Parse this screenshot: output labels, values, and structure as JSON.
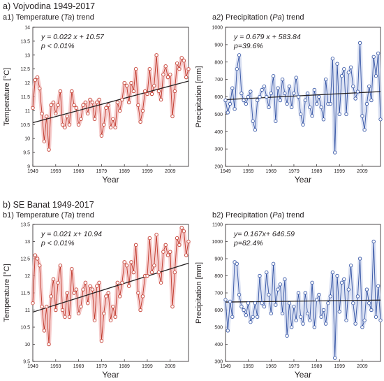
{
  "sections": [
    {
      "title": "a) Vojvodina 1949-2017"
    },
    {
      "title": "b) SE Banat 1949-2017"
    }
  ],
  "panel_titles": [
    {
      "prefix": "a1) Temperature (",
      "sym": "Ta",
      "suffix": ") trend"
    },
    {
      "prefix": "a2) Precipitation (",
      "sym": "Pa",
      "suffix": ") trend"
    },
    {
      "prefix": "b1) Temperature (",
      "sym": "Ta",
      "suffix": ") trend"
    },
    {
      "prefix": "b2) Precipitation (",
      "sym": "Pa",
      "suffix": ") trend"
    }
  ],
  "chart_data": [
    {
      "type": "line",
      "title": "a1) Temperature (Ta) trend",
      "xlabel": "Year",
      "ylabel": "Temperature [°C]",
      "equation": "y = 0.022 x + 10.57",
      "pvalue": "p < 0.01%",
      "color": "#c0392b",
      "halo": "#f2b8b8",
      "xlim": [
        1949,
        2017
      ],
      "ylim": [
        9,
        14
      ],
      "xticks": [
        1949,
        1959,
        1969,
        1979,
        1989,
        1999,
        2009
      ],
      "yticks": [
        9,
        9.5,
        10,
        10.5,
        11,
        11.5,
        12,
        12.5,
        13,
        13.5,
        14
      ],
      "trend": {
        "slope": 0.022,
        "intercept": 10.57
      },
      "x": [
        1949,
        1950,
        1951,
        1952,
        1953,
        1954,
        1955,
        1956,
        1957,
        1958,
        1959,
        1960,
        1961,
        1962,
        1963,
        1964,
        1965,
        1966,
        1967,
        1968,
        1969,
        1970,
        1971,
        1972,
        1973,
        1974,
        1975,
        1976,
        1977,
        1978,
        1979,
        1980,
        1981,
        1982,
        1983,
        1984,
        1985,
        1986,
        1987,
        1988,
        1989,
        1990,
        1991,
        1992,
        1993,
        1994,
        1995,
        1996,
        1997,
        1998,
        1999,
        2000,
        2001,
        2002,
        2003,
        2004,
        2005,
        2006,
        2007,
        2008,
        2009,
        2010,
        2011,
        2012,
        2013,
        2014,
        2015,
        2016,
        2017
      ],
      "values": [
        11.1,
        12.1,
        12.2,
        11.8,
        10.9,
        9.9,
        10.8,
        9.6,
        11.2,
        11.3,
        10.9,
        11.2,
        11.7,
        10.5,
        10.4,
        10.8,
        10.5,
        11.7,
        11.2,
        11.1,
        10.5,
        10.7,
        11.2,
        11.3,
        10.9,
        11.4,
        11.3,
        10.7,
        11.3,
        11.4,
        10.1,
        10.5,
        11.1,
        11.2,
        10.4,
        10.7,
        10.4,
        11.3,
        11.0,
        11.4,
        12.0,
        11.9,
        11.3,
        12.0,
        11.7,
        12.5,
        11.2,
        10.6,
        11.0,
        11.7,
        11.6,
        12.5,
        11.6,
        11.9,
        13.0,
        11.7,
        11.4,
        12.3,
        12.6,
        12.2,
        12.3,
        10.8,
        11.7,
        12.7,
        12.5,
        12.9,
        12.8,
        12.2,
        12.5
      ]
    },
    {
      "type": "line",
      "title": "a2) Precipitation (Pa) trend",
      "xlabel": "Year",
      "ylabel": "Precipitation [mm]",
      "equation": "y = 0.679 x + 583.84",
      "pvalue": "p=39.6%",
      "color": "#3454a4",
      "halo": "#cdd6ee",
      "xlim": [
        1949,
        2017
      ],
      "ylim": [
        200,
        1000
      ],
      "xticks": [
        1949,
        1959,
        1969,
        1979,
        1989,
        1999,
        2009
      ],
      "yticks": [
        200,
        300,
        400,
        500,
        600,
        700,
        800,
        900,
        1000
      ],
      "trend": {
        "slope": 0.679,
        "intercept": 583.84
      },
      "x": [
        1949,
        1950,
        1951,
        1952,
        1953,
        1954,
        1955,
        1956,
        1957,
        1958,
        1959,
        1960,
        1961,
        1962,
        1963,
        1964,
        1965,
        1966,
        1967,
        1968,
        1969,
        1970,
        1971,
        1972,
        1973,
        1974,
        1975,
        1976,
        1977,
        1978,
        1979,
        1980,
        1981,
        1982,
        1983,
        1984,
        1985,
        1986,
        1987,
        1988,
        1989,
        1990,
        1991,
        1992,
        1993,
        1994,
        1995,
        1996,
        1997,
        1998,
        1999,
        2000,
        2001,
        2002,
        2003,
        2004,
        2005,
        2006,
        2007,
        2008,
        2009,
        2010,
        2011,
        2012,
        2013,
        2014,
        2015,
        2016,
        2017
      ],
      "values": [
        580,
        510,
        560,
        650,
        530,
        760,
        840,
        620,
        580,
        560,
        600,
        630,
        460,
        410,
        580,
        600,
        640,
        660,
        600,
        540,
        620,
        720,
        460,
        650,
        580,
        700,
        620,
        560,
        660,
        540,
        620,
        710,
        600,
        500,
        440,
        580,
        620,
        540,
        490,
        640,
        560,
        600,
        540,
        470,
        700,
        560,
        560,
        820,
        280,
        790,
        500,
        720,
        760,
        500,
        740,
        770,
        660,
        590,
        630,
        910,
        490,
        410,
        560,
        660,
        580,
        830,
        720,
        850,
        470
      ]
    },
    {
      "type": "line",
      "title": "b1) Temperature (Ta) trend",
      "xlabel": "Year",
      "ylabel": "Temperature [°C]",
      "equation": "y = 0.021 x+ 10.94",
      "pvalue": "p < 0.01%",
      "color": "#c0392b",
      "halo": "#f2b8b8",
      "xlim": [
        1949,
        2017
      ],
      "ylim": [
        9.5,
        13.5
      ],
      "xticks": [
        1949,
        1959,
        1969,
        1979,
        1989,
        1999,
        2009
      ],
      "yticks": [
        9.5,
        10,
        10.5,
        11,
        11.5,
        12,
        12.5,
        13,
        13.5
      ],
      "trend": {
        "slope": 0.021,
        "intercept": 10.94
      },
      "x": [
        1949,
        1950,
        1951,
        1952,
        1953,
        1954,
        1955,
        1956,
        1957,
        1958,
        1959,
        1960,
        1961,
        1962,
        1963,
        1964,
        1965,
        1966,
        1967,
        1968,
        1969,
        1970,
        1971,
        1972,
        1973,
        1974,
        1975,
        1976,
        1977,
        1978,
        1979,
        1980,
        1981,
        1982,
        1983,
        1984,
        1985,
        1986,
        1987,
        1988,
        1989,
        1990,
        1991,
        1992,
        1993,
        1994,
        1995,
        1996,
        1997,
        1998,
        1999,
        2000,
        2001,
        2002,
        2003,
        2004,
        2005,
        2006,
        2007,
        2008,
        2009,
        2010,
        2011,
        2012,
        2013,
        2014,
        2015,
        2016,
        2017
      ],
      "values": [
        11.2,
        12.6,
        12.5,
        12.3,
        11.1,
        10.4,
        11.1,
        10.0,
        11.4,
        11.9,
        11.0,
        11.8,
        12.3,
        11.0,
        10.8,
        11.5,
        10.8,
        12.2,
        11.5,
        11.6,
        10.9,
        11.1,
        11.6,
        11.8,
        11.2,
        11.7,
        11.6,
        10.7,
        11.7,
        11.8,
        10.1,
        10.9,
        11.4,
        11.5,
        10.7,
        11.1,
        10.8,
        11.8,
        11.4,
        11.8,
        12.4,
        12.3,
        11.7,
        12.4,
        12.1,
        12.9,
        11.5,
        11.0,
        11.4,
        12.0,
        12.0,
        13.1,
        12.1,
        12.3,
        13.2,
        12.1,
        11.8,
        12.7,
        12.9,
        12.6,
        12.7,
        11.1,
        12.1,
        13.1,
        12.9,
        13.4,
        13.3,
        12.6,
        13.0
      ]
    },
    {
      "type": "line",
      "title": "b2) Precipitation (Pa) trend",
      "xlabel": "Year",
      "ylabel": "Precipitation [mm]",
      "equation": "y= 0.167x+ 646.59",
      "pvalue": "p=82.4%",
      "color": "#3454a4",
      "halo": "#cdd6ee",
      "xlim": [
        1949,
        2017
      ],
      "ylim": [
        300,
        1100
      ],
      "xticks": [
        1949,
        1959,
        1969,
        1979,
        1989,
        1999,
        2009
      ],
      "yticks": [
        300,
        400,
        500,
        600,
        700,
        800,
        900,
        1000,
        1100
      ],
      "trend": {
        "slope": 0.167,
        "intercept": 646.59
      },
      "x": [
        1949,
        1950,
        1951,
        1952,
        1953,
        1954,
        1955,
        1956,
        1957,
        1958,
        1959,
        1960,
        1961,
        1962,
        1963,
        1964,
        1965,
        1966,
        1967,
        1968,
        1969,
        1970,
        1971,
        1972,
        1973,
        1974,
        1975,
        1976,
        1977,
        1978,
        1979,
        1980,
        1981,
        1982,
        1983,
        1984,
        1985,
        1986,
        1987,
        1988,
        1989,
        1990,
        1991,
        1992,
        1993,
        1994,
        1995,
        1996,
        1997,
        1998,
        1999,
        2000,
        2001,
        2002,
        2003,
        2004,
        2005,
        2006,
        2007,
        2008,
        2009,
        2010,
        2011,
        2012,
        2013,
        2014,
        2015,
        2016,
        2017
      ],
      "values": [
        660,
        480,
        650,
        560,
        880,
        870,
        690,
        620,
        600,
        570,
        640,
        530,
        560,
        640,
        560,
        800,
        640,
        620,
        820,
        690,
        580,
        870,
        630,
        720,
        750,
        580,
        780,
        450,
        640,
        500,
        620,
        540,
        700,
        560,
        520,
        700,
        580,
        540,
        760,
        500,
        660,
        690,
        560,
        600,
        520,
        640,
        680,
        820,
        320,
        800,
        590,
        760,
        780,
        540,
        720,
        860,
        640,
        520,
        680,
        900,
        500,
        540,
        720,
        640,
        600,
        1000,
        560,
        740,
        540
      ]
    }
  ]
}
